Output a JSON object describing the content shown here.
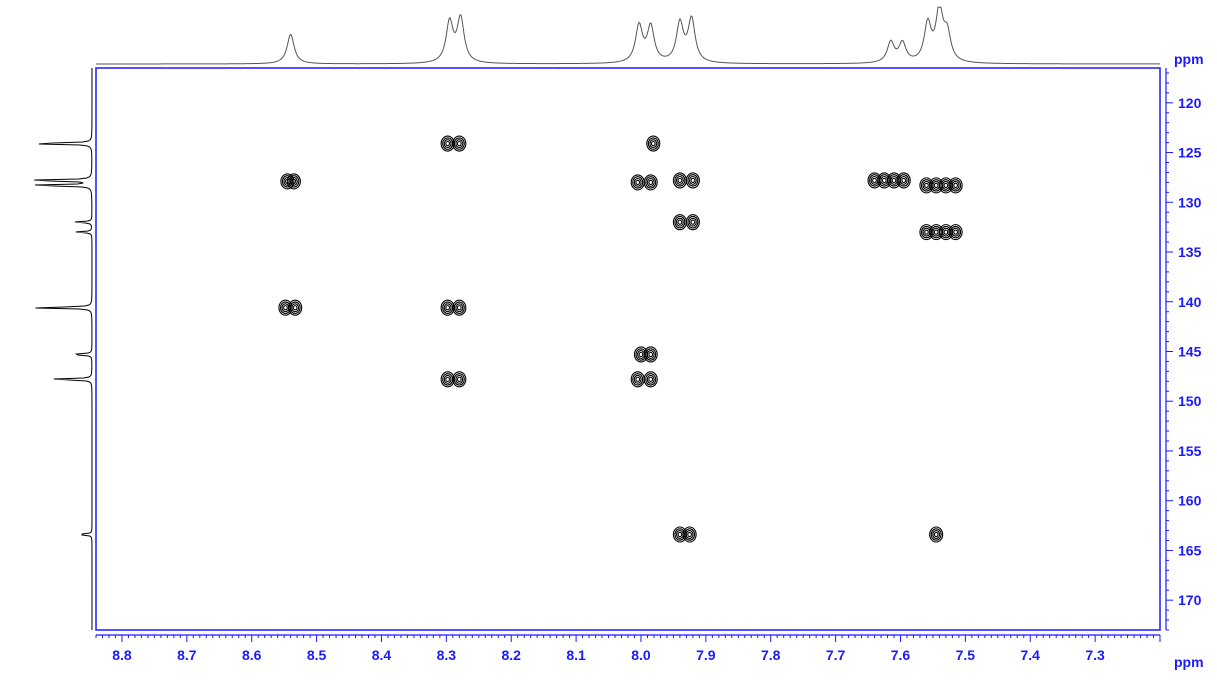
{
  "chart_data": {
    "type": "scatter",
    "subtype": "2D NMR contour plot (HMBC)",
    "title": "",
    "xlabel": "ppm",
    "ylabel": "ppm",
    "x_axis": {
      "label": "ppm",
      "reversed": true,
      "range": [
        7.2,
        8.84
      ],
      "ticks": [
        "8.8",
        "8.7",
        "8.6",
        "8.5",
        "8.4",
        "8.3",
        "8.2",
        "8.1",
        "8.0",
        "7.9",
        "7.8",
        "7.7",
        "7.6",
        "7.5",
        "7.4",
        "7.3"
      ]
    },
    "y_axis": {
      "label": "ppm",
      "reversed": true,
      "range": [
        116.5,
        173.0
      ],
      "ticks": [
        "120",
        "125",
        "130",
        "135",
        "140",
        "145",
        "150",
        "155",
        "160",
        "165",
        "170"
      ]
    },
    "grid": false,
    "colors": {
      "axis": "#1a1aff",
      "contour": "#000000",
      "projection": "#555555"
    },
    "cross_peaks": [
      {
        "x": 8.545,
        "y": 127.9
      },
      {
        "x": 8.535,
        "y": 127.9
      },
      {
        "x": 8.548,
        "y": 140.6
      },
      {
        "x": 8.533,
        "y": 140.6
      },
      {
        "x": 8.298,
        "y": 124.1
      },
      {
        "x": 8.28,
        "y": 124.1
      },
      {
        "x": 8.298,
        "y": 140.6
      },
      {
        "x": 8.28,
        "y": 140.6
      },
      {
        "x": 8.298,
        "y": 147.8
      },
      {
        "x": 8.28,
        "y": 147.8
      },
      {
        "x": 7.981,
        "y": 124.1
      },
      {
        "x": 8.005,
        "y": 128.0
      },
      {
        "x": 7.985,
        "y": 128.0
      },
      {
        "x": 8.0,
        "y": 145.3
      },
      {
        "x": 7.985,
        "y": 145.3
      },
      {
        "x": 8.005,
        "y": 147.8
      },
      {
        "x": 7.985,
        "y": 147.8
      },
      {
        "x": 7.94,
        "y": 127.8
      },
      {
        "x": 7.92,
        "y": 127.8
      },
      {
        "x": 7.94,
        "y": 132.0
      },
      {
        "x": 7.92,
        "y": 132.0
      },
      {
        "x": 7.94,
        "y": 163.4
      },
      {
        "x": 7.925,
        "y": 163.4
      },
      {
        "x": 7.64,
        "y": 127.8
      },
      {
        "x": 7.625,
        "y": 127.8
      },
      {
        "x": 7.61,
        "y": 127.8
      },
      {
        "x": 7.595,
        "y": 127.8
      },
      {
        "x": 7.56,
        "y": 128.3
      },
      {
        "x": 7.545,
        "y": 128.3
      },
      {
        "x": 7.53,
        "y": 128.3
      },
      {
        "x": 7.515,
        "y": 128.3
      },
      {
        "x": 7.56,
        "y": 133.0
      },
      {
        "x": 7.545,
        "y": 133.0
      },
      {
        "x": 7.53,
        "y": 133.0
      },
      {
        "x": 7.515,
        "y": 133.0
      },
      {
        "x": 7.545,
        "y": 163.4
      }
    ],
    "proton_projection_peaks": [
      {
        "x": 8.54,
        "height": 0.55
      },
      {
        "x": 8.295,
        "height": 0.75
      },
      {
        "x": 8.278,
        "height": 0.82
      },
      {
        "x": 8.003,
        "height": 0.68
      },
      {
        "x": 7.985,
        "height": 0.66
      },
      {
        "x": 7.94,
        "height": 0.72
      },
      {
        "x": 7.922,
        "height": 0.8
      },
      {
        "x": 7.615,
        "height": 0.38
      },
      {
        "x": 7.597,
        "height": 0.36
      },
      {
        "x": 7.558,
        "height": 0.7
      },
      {
        "x": 7.54,
        "height": 0.95
      },
      {
        "x": 7.528,
        "height": 0.5
      }
    ],
    "carbon_projection_peaks": [
      {
        "y": 124.1,
        "height": 0.92
      },
      {
        "y": 127.8,
        "height": 0.98
      },
      {
        "y": 128.3,
        "height": 0.92
      },
      {
        "y": 132.0,
        "height": 0.22
      },
      {
        "y": 133.0,
        "height": 0.2
      },
      {
        "y": 140.6,
        "height": 0.82
      },
      {
        "y": 145.3,
        "height": 0.3
      },
      {
        "y": 147.8,
        "height": 0.6
      },
      {
        "y": 163.4,
        "height": 0.2
      }
    ]
  }
}
